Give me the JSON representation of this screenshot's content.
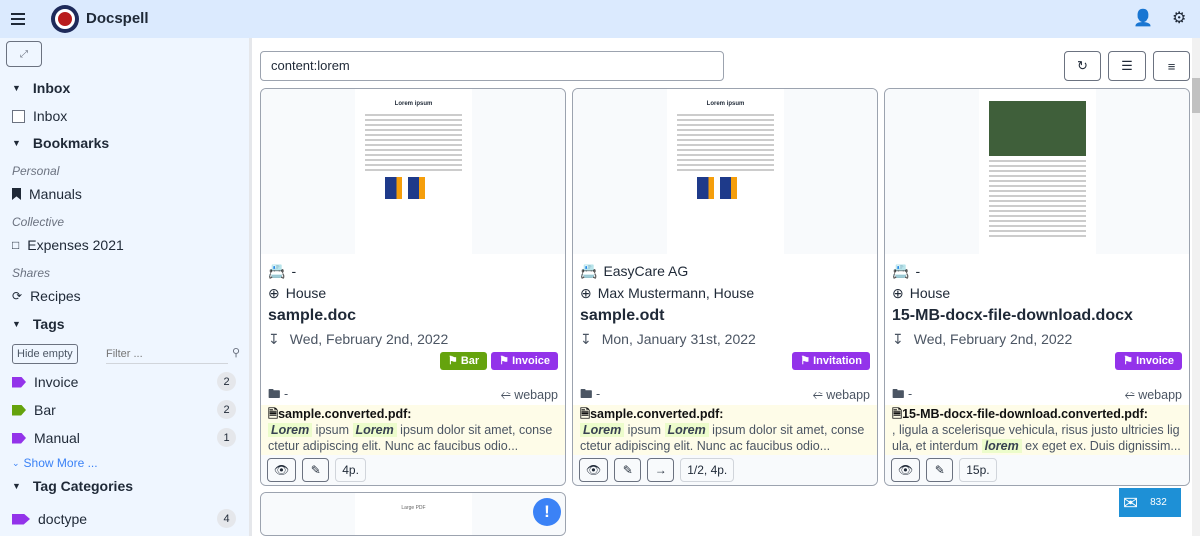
{
  "app": {
    "title": "Docspell"
  },
  "sidebar": {
    "inbox_header": "Inbox",
    "inbox_item": "Inbox",
    "bookmarks_header": "Bookmarks",
    "personal_label": "Personal",
    "personal_item": "Manuals",
    "collective_label": "Collective",
    "collective_item": "Expenses 2021",
    "shares_label": "Shares",
    "shares_item": "Recipes",
    "tags_header": "Tags",
    "hide_empty": "Hide empty",
    "filter_placeholder": "Filter ...",
    "tags": [
      {
        "label": "Invoice",
        "count": "2",
        "color": "#9333ea"
      },
      {
        "label": "Bar",
        "count": "2",
        "color": "#65a30d"
      },
      {
        "label": "Manual",
        "count": "1",
        "color": "#9333ea"
      }
    ],
    "show_more": "Show More ...",
    "tag_categories_header": "Tag Categories",
    "categories": [
      {
        "label": "doctype",
        "count": "4",
        "color": "#9333ea"
      }
    ]
  },
  "search": {
    "value": "content:lorem"
  },
  "cards": [
    {
      "correspondent": "-",
      "concerning": "House",
      "title": "sample.doc",
      "date": "Wed, February 2nd, 2022",
      "tags": [
        {
          "label": "Bar",
          "color": "#65a30d"
        },
        {
          "label": "Invoice",
          "color": "#9333ea"
        }
      ],
      "folder": "-",
      "source": "webapp",
      "file": "sample.converted.pdf:",
      "snippet_pre": "",
      "hl1": "Lorem",
      "mid": " ipsum ",
      "hl2": "Lorem",
      "snippet_post": " ipsum dolor sit amet, consectetur adipiscing elit. Nunc ac faucibus odio...",
      "pages": "4p.",
      "preview_title": "Lorem ipsum"
    },
    {
      "correspondent": "EasyCare AG",
      "concerning": "Max Mustermann, House",
      "title": "sample.odt",
      "date": "Mon, January 31st, 2022",
      "tags": [
        {
          "label": "Invitation",
          "color": "#9333ea"
        }
      ],
      "folder": "-",
      "source": "webapp",
      "file": "sample.converted.pdf:",
      "snippet_pre": "",
      "hl1": "Lorem",
      "mid": " ipsum ",
      "hl2": "Lorem",
      "snippet_post": " ipsum dolor sit amet, consectetur adipiscing elit. Nunc ac faucibus odio...",
      "pages": "1/2, 4p.",
      "preview_title": "Lorem ipsum"
    },
    {
      "correspondent": "-",
      "concerning": "House",
      "title": "15-MB-docx-file-download.docx",
      "date": "Wed, February 2nd, 2022",
      "tags": [
        {
          "label": "Invoice",
          "color": "#9333ea"
        }
      ],
      "folder": "-",
      "source": "webapp",
      "file": "15-MB-docx-file-download.converted.pdf:",
      "snippet_pre": ", ligula a scelerisque vehicula, risus justo ultricies ligula, et interdum ",
      "hl1": "lorem",
      "mid": "",
      "hl2": "",
      "snippet_post": " ex eget ex. Duis dignissim...",
      "pages": "15p.",
      "preview_title": ""
    }
  ],
  "next_card": {
    "preview_title": "Large PDF"
  },
  "counter": {
    "value": "832"
  }
}
